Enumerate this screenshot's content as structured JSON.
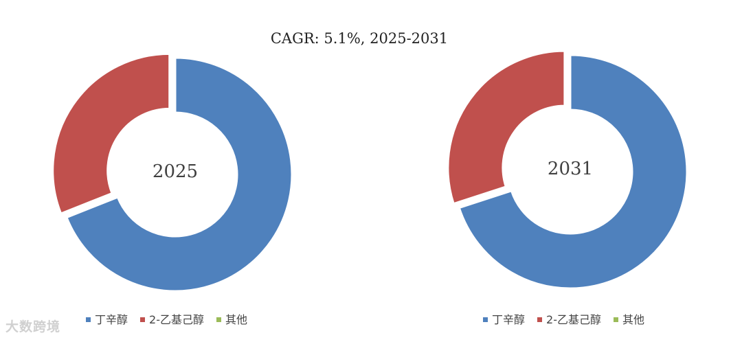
{
  "chart_data": [
    {
      "type": "donut",
      "title": "CAGR:   5.1%, 2025-2031",
      "center_label": "2025",
      "categories": [
        "丁辛醇",
        "2-乙基己醇",
        "其他"
      ],
      "values": [
        69,
        31,
        0
      ],
      "colors": [
        "#4F81BD",
        "#C0504D",
        "#9BBB59"
      ]
    },
    {
      "type": "donut",
      "center_label": "2031",
      "categories": [
        "丁辛醇",
        "2-乙基己醇",
        "其他"
      ],
      "values": [
        70,
        30,
        0
      ],
      "colors": [
        "#4F81BD",
        "#C0504D",
        "#9BBB59"
      ]
    }
  ],
  "watermark": "大数跨境"
}
